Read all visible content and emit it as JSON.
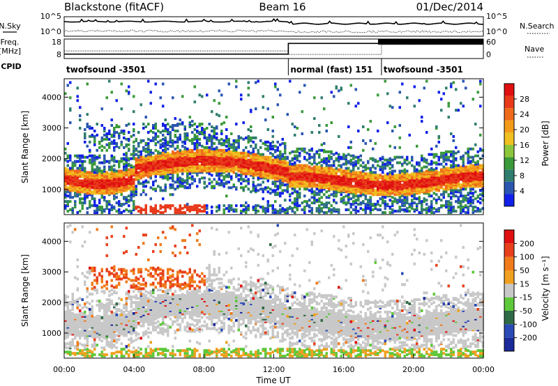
{
  "header": {
    "station": "Blackstone (fitACF)",
    "beam": "Beam 16",
    "date": "01/Dec/2014"
  },
  "sidepanel_labels": {
    "nsky": "N.Sky",
    "freq": "Freq.",
    "mhz": "[MHz]",
    "cpid": "CPID",
    "nsearch": "N.Search",
    "nave": "Nave"
  },
  "chart_data": [
    {
      "type": "line",
      "panel": "noise",
      "left_ticks": [
        "10^5",
        "10^0"
      ],
      "right_ticks": [
        "10^5",
        "10^0"
      ],
      "series": [
        {
          "name": "N.Sky",
          "style": "solid"
        },
        {
          "name": "N.Search",
          "style": "dotted"
        }
      ]
    },
    {
      "type": "line",
      "panel": "frequency",
      "left_ticks": [
        "18",
        "8"
      ],
      "right_ticks": [
        "60",
        "0"
      ],
      "frequency_mhz": [
        {
          "from": "00:00",
          "to": "12:50",
          "value": 10.5
        },
        {
          "from": "12:50",
          "to": "24:00",
          "value": 16.6
        }
      ],
      "nave": [
        {
          "from": "00:00",
          "to": "12:50",
          "value": 26
        },
        {
          "from": "12:50",
          "to": "18:10",
          "value": 14
        },
        {
          "from": "18:10",
          "to": "24:00",
          "value": 48
        }
      ]
    },
    {
      "type": "table",
      "panel": "cpid",
      "segments": [
        {
          "label": "twofsound -3501",
          "from": "00:00",
          "to": "12:50"
        },
        {
          "label": "normal (fast) 151",
          "from": "12:50",
          "to": "18:10"
        },
        {
          "label": "twofsound -3501",
          "from": "18:10",
          "to": "24:00"
        }
      ]
    },
    {
      "type": "heatmap",
      "panel": "power",
      "ylabel": "Slant Range [km]",
      "yticks": [
        1000,
        2000,
        3000,
        4000
      ],
      "ylim": [
        180,
        4600
      ],
      "colorbar": {
        "label": "Power [dB]",
        "ticks": [
          4,
          8,
          12,
          16,
          20,
          24,
          28
        ],
        "colors": [
          "#1020e8",
          "#2a56b0",
          "#2f7d6e",
          "#3a9a3a",
          "#8cc63c",
          "#f0c020",
          "#f39a1a",
          "#ee6a1a",
          "#e83a1a",
          "#e01010"
        ]
      }
    },
    {
      "type": "heatmap",
      "panel": "velocity",
      "ylabel": "Slant Range [km]",
      "yticks": [
        1000,
        2000,
        3000,
        4000
      ],
      "ylim": [
        180,
        4600
      ],
      "xlabel": "Time UT",
      "xticks": [
        "00:00",
        "04:00",
        "08:00",
        "12:00",
        "16:00",
        "20:00",
        "00:00"
      ],
      "colorbar": {
        "label": "Velocity [m s⁻¹]",
        "ticks": [
          200,
          100,
          50,
          15,
          -15,
          -50,
          -100,
          -200
        ],
        "colors": [
          "#1a2a9a",
          "#2a4ab6",
          "#2f6a46",
          "#5ec83a",
          "#c8c8c8",
          "#f0a020",
          "#f07a1a",
          "#e8401a",
          "#e01010"
        ]
      }
    }
  ]
}
